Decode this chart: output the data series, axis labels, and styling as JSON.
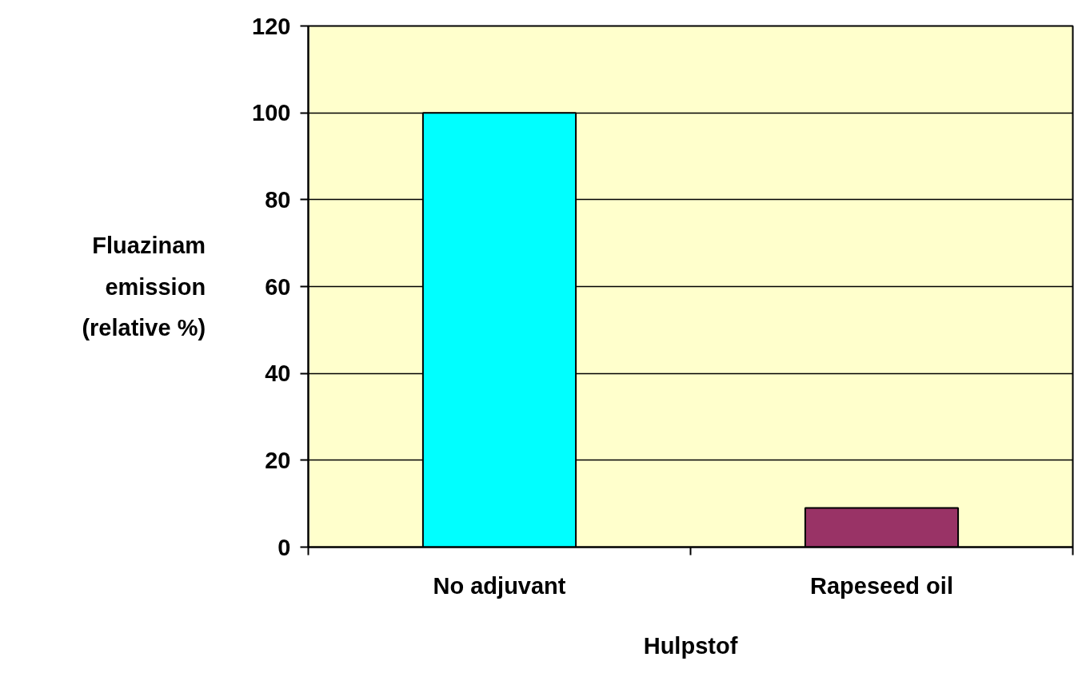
{
  "chart_data": {
    "type": "bar",
    "categories": [
      "No adjuvant",
      "Rapeseed oil"
    ],
    "colors": [
      "#00ffff",
      "#993366"
    ],
    "values": [
      100,
      9
    ],
    "xlabel": "Hulpstof",
    "ylabel": "Fluazinam\nemission\n(relative %)",
    "ylim": [
      0,
      120
    ],
    "yticks": [
      0,
      20,
      40,
      60,
      80,
      100,
      120
    ],
    "grid": "y"
  }
}
